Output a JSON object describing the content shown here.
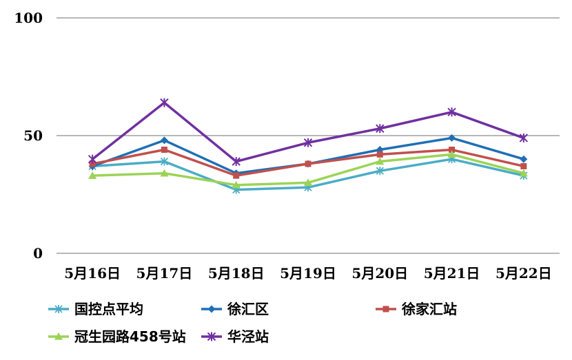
{
  "chart_data": {
    "type": "line",
    "title": "",
    "xlabel": "",
    "ylabel": "",
    "ylim": [
      0,
      100
    ],
    "yticks": [
      0,
      50,
      100
    ],
    "grid": true,
    "legend_position": "bottom",
    "categories": [
      "5月16日",
      "5月17日",
      "5月18日",
      "5月19日",
      "5月20日",
      "5月21日",
      "5月22日"
    ],
    "series": [
      {
        "name": "国控点平均",
        "color": "#4BACC6",
        "marker": "asterisk",
        "values": [
          37,
          39,
          27,
          28,
          35,
          40,
          33
        ]
      },
      {
        "name": "徐汇区",
        "color": "#1F6FB5",
        "marker": "diamond",
        "values": [
          37,
          48,
          34,
          38,
          44,
          49,
          40
        ]
      },
      {
        "name": "徐家汇站",
        "color": "#C0504D",
        "marker": "square",
        "values": [
          38,
          44,
          33,
          38,
          42,
          44,
          37
        ]
      },
      {
        "name": "冠生园路458号站",
        "color": "#9BD357",
        "marker": "triangle",
        "values": [
          33,
          34,
          29,
          30,
          39,
          42,
          34
        ]
      },
      {
        "name": "华泾站",
        "color": "#7030A0",
        "marker": "star",
        "values": [
          40,
          64,
          39,
          47,
          53,
          60,
          49
        ]
      }
    ]
  }
}
